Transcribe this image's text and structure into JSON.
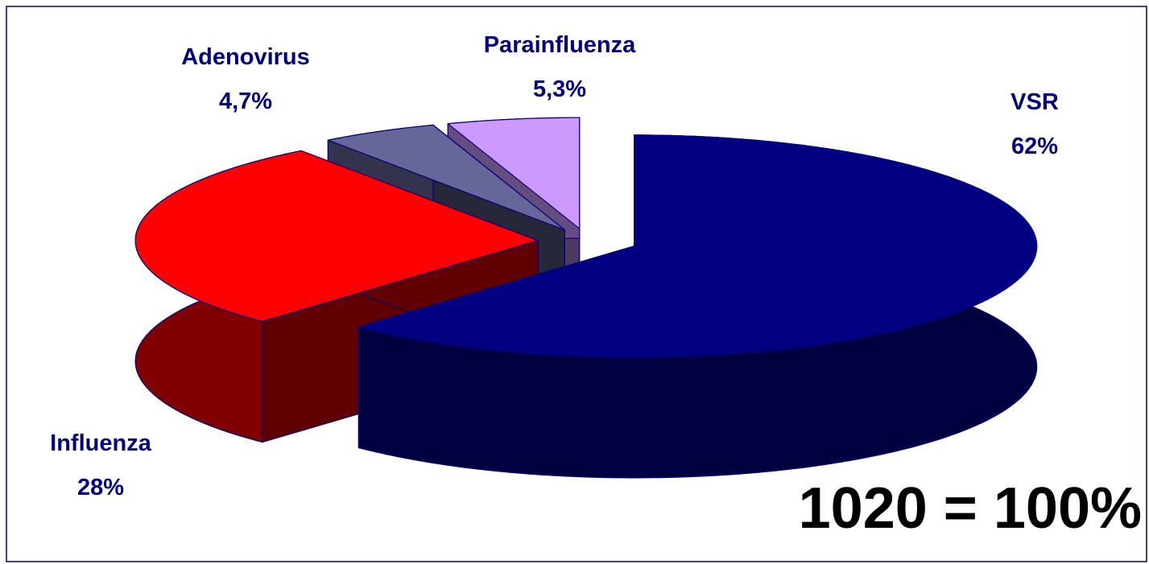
{
  "chart_data": {
    "type": "pie",
    "categories": [
      "VSR",
      "Influenza",
      "Adenovirus",
      "Parainfluenza"
    ],
    "values": [
      62,
      28,
      4.7,
      5.3
    ],
    "value_labels": [
      "62%",
      "28%",
      "4,7%",
      "5,3%"
    ],
    "colors": [
      "#000080",
      "#ff0000",
      "#666699",
      "#cc99ff"
    ],
    "annotation": "1020 = 100%"
  }
}
